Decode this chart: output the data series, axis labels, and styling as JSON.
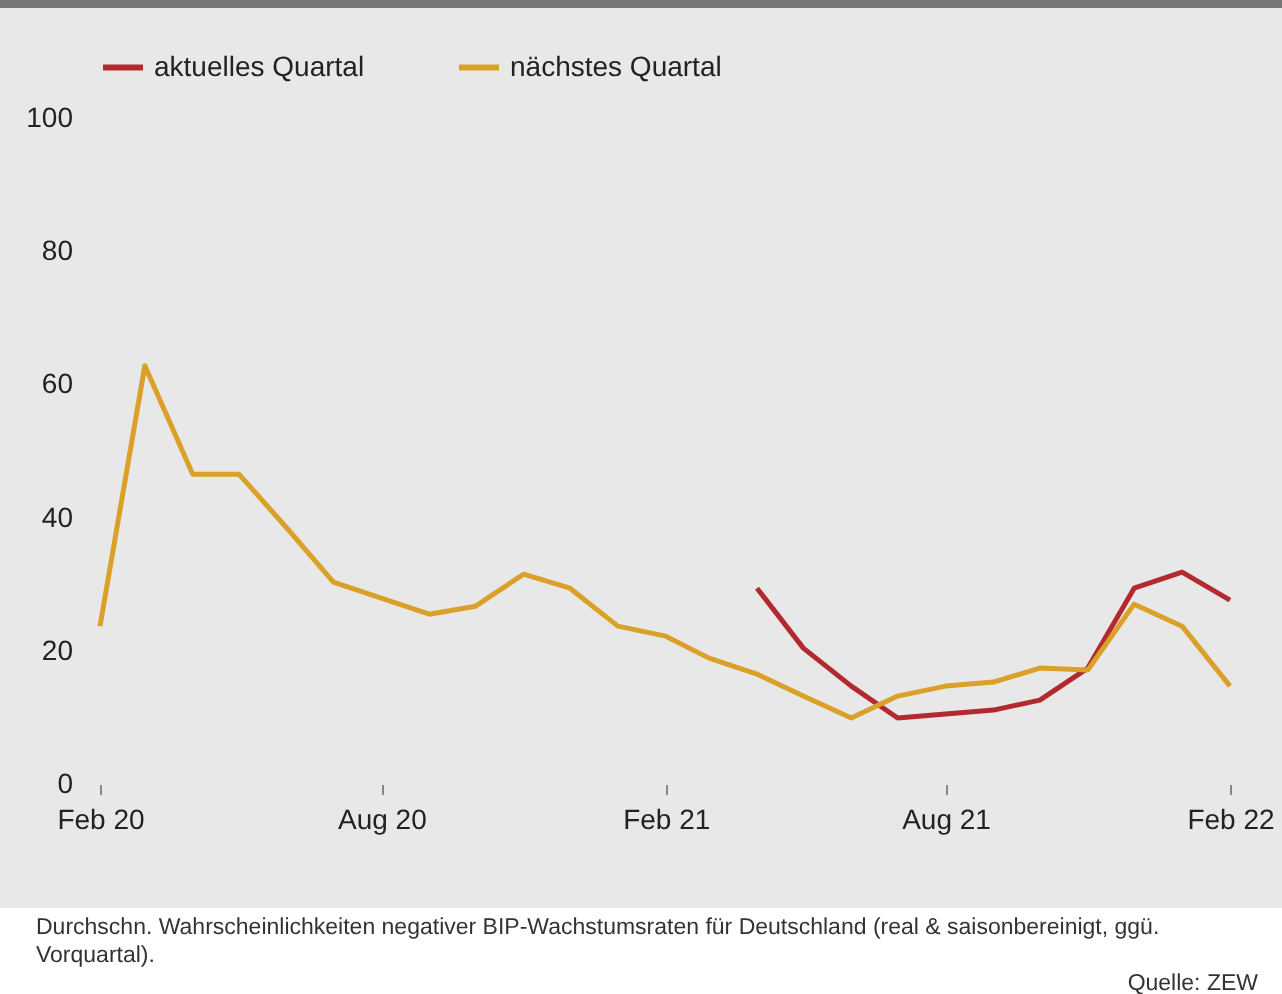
{
  "chart_data": {
    "type": "line",
    "x": [
      "2020-02",
      "2020-03",
      "2020-04",
      "2020-05",
      "2020-06",
      "2020-07",
      "2020-08",
      "2020-09",
      "2020-10",
      "2020-11",
      "2020-12",
      "2021-01",
      "2021-02",
      "2021-03",
      "2021-04",
      "2021-05",
      "2021-06",
      "2021-07",
      "2021-08",
      "2021-09",
      "2021-10",
      "2021-11",
      "2021-12",
      "2022-01",
      "2022-02"
    ],
    "series": [
      {
        "name": "aktuelles Quartal",
        "color": "#b22a2e",
        "values": [
          null,
          null,
          null,
          null,
          null,
          null,
          null,
          null,
          null,
          null,
          null,
          null,
          null,
          null,
          29.4,
          20.4,
          14.7,
          9.9,
          10.5,
          11.1,
          12.6,
          17.4,
          29.4,
          31.8,
          27.6
        ]
      },
      {
        "name": "nächstes Quartal",
        "color": "#d9a128",
        "values": [
          23.7,
          62.8,
          46.5,
          46.5,
          38.4,
          30.3,
          27.9,
          25.5,
          26.7,
          31.5,
          29.4,
          23.7,
          22.2,
          18.9,
          16.5,
          13.2,
          9.9,
          13.2,
          14.7,
          15.3,
          17.4,
          17.1,
          27.0,
          23.7,
          14.7
        ]
      }
    ],
    "xlim": [
      "2020-02",
      "2022-02"
    ],
    "xticks": [
      {
        "value": "2020-02",
        "label": "Feb 20"
      },
      {
        "value": "2020-08",
        "label": "Aug 20"
      },
      {
        "value": "2021-02",
        "label": "Feb 21"
      },
      {
        "value": "2021-08",
        "label": "Aug 21"
      },
      {
        "value": "2022-02",
        "label": "Feb 22"
      }
    ],
    "ylim": [
      0,
      100
    ],
    "yticks": [
      0,
      20,
      40,
      60,
      80,
      100
    ],
    "grid": false,
    "legend": "top",
    "annotations": [
      "Durchschn. Wahrscheinlichkeiten negativer BIP-Wachstumsraten für Deutschland (real & saisonbereinigt, ggü. Vorquartal).",
      "Quelle: ZEW"
    ]
  }
}
